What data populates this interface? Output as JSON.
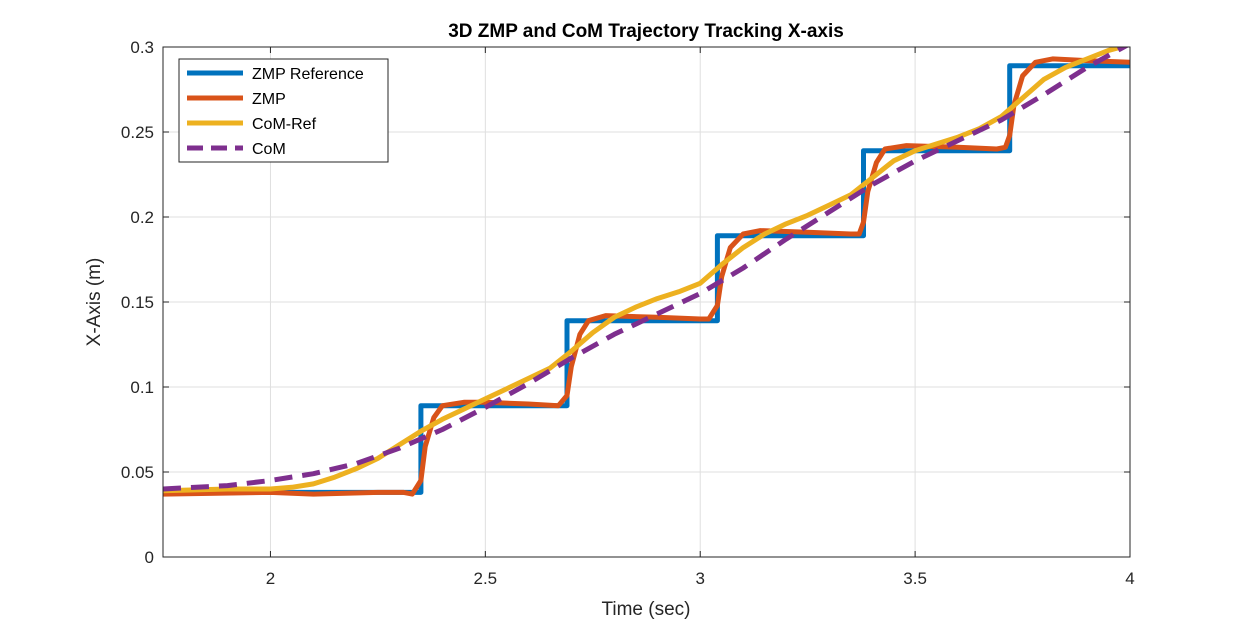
{
  "chart_data": {
    "type": "line",
    "title": "3D ZMP and CoM Trajectory Tracking X-axis",
    "xlabel": "Time (sec)",
    "ylabel": "X-Axis (m)",
    "xlim": [
      1.75,
      4.0
    ],
    "ylim": [
      0,
      0.3
    ],
    "xticks": [
      2,
      2.5,
      3,
      3.5,
      4
    ],
    "yticks": [
      0,
      0.05,
      0.1,
      0.15,
      0.2,
      0.25,
      0.3
    ],
    "grid": true,
    "legend_position": "top-left",
    "series": [
      {
        "name": "ZMP Reference",
        "color": "#0072BD",
        "style": "solid",
        "points": [
          [
            1.75,
            0.038
          ],
          [
            2.35,
            0.038
          ],
          [
            2.35,
            0.089
          ],
          [
            2.69,
            0.089
          ],
          [
            2.69,
            0.139
          ],
          [
            3.04,
            0.139
          ],
          [
            3.04,
            0.189
          ],
          [
            3.38,
            0.189
          ],
          [
            3.38,
            0.239
          ],
          [
            3.72,
            0.239
          ],
          [
            3.72,
            0.289
          ],
          [
            4.0,
            0.289
          ]
        ]
      },
      {
        "name": "ZMP",
        "color": "#D95319",
        "style": "solid",
        "points": [
          [
            1.75,
            0.037
          ],
          [
            2.0,
            0.038
          ],
          [
            2.1,
            0.037
          ],
          [
            2.25,
            0.038
          ],
          [
            2.31,
            0.038
          ],
          [
            2.33,
            0.037
          ],
          [
            2.35,
            0.045
          ],
          [
            2.36,
            0.065
          ],
          [
            2.38,
            0.082
          ],
          [
            2.4,
            0.089
          ],
          [
            2.45,
            0.091
          ],
          [
            2.5,
            0.091
          ],
          [
            2.6,
            0.09
          ],
          [
            2.67,
            0.089
          ],
          [
            2.69,
            0.095
          ],
          [
            2.7,
            0.112
          ],
          [
            2.72,
            0.131
          ],
          [
            2.74,
            0.139
          ],
          [
            2.78,
            0.142
          ],
          [
            2.9,
            0.141
          ],
          [
            3.0,
            0.14
          ],
          [
            3.02,
            0.14
          ],
          [
            3.04,
            0.148
          ],
          [
            3.05,
            0.165
          ],
          [
            3.07,
            0.182
          ],
          [
            3.1,
            0.19
          ],
          [
            3.14,
            0.192
          ],
          [
            3.25,
            0.191
          ],
          [
            3.35,
            0.19
          ],
          [
            3.37,
            0.19
          ],
          [
            3.38,
            0.197
          ],
          [
            3.39,
            0.215
          ],
          [
            3.41,
            0.232
          ],
          [
            3.43,
            0.24
          ],
          [
            3.48,
            0.242
          ],
          [
            3.6,
            0.241
          ],
          [
            3.69,
            0.24
          ],
          [
            3.71,
            0.241
          ],
          [
            3.72,
            0.248
          ],
          [
            3.73,
            0.266
          ],
          [
            3.75,
            0.283
          ],
          [
            3.78,
            0.291
          ],
          [
            3.82,
            0.293
          ],
          [
            3.9,
            0.292
          ],
          [
            4.0,
            0.291
          ]
        ]
      },
      {
        "name": "CoM-Ref",
        "color": "#EDB120",
        "style": "solid",
        "points": [
          [
            1.75,
            0.039
          ],
          [
            1.9,
            0.04
          ],
          [
            2.0,
            0.04
          ],
          [
            2.05,
            0.041
          ],
          [
            2.1,
            0.043
          ],
          [
            2.15,
            0.047
          ],
          [
            2.2,
            0.052
          ],
          [
            2.25,
            0.058
          ],
          [
            2.3,
            0.066
          ],
          [
            2.35,
            0.074
          ],
          [
            2.4,
            0.081
          ],
          [
            2.45,
            0.087
          ],
          [
            2.5,
            0.093
          ],
          [
            2.55,
            0.099
          ],
          [
            2.6,
            0.105
          ],
          [
            2.65,
            0.111
          ],
          [
            2.7,
            0.121
          ],
          [
            2.75,
            0.132
          ],
          [
            2.8,
            0.141
          ],
          [
            2.85,
            0.147
          ],
          [
            2.9,
            0.152
          ],
          [
            2.95,
            0.156
          ],
          [
            3.0,
            0.161
          ],
          [
            3.05,
            0.172
          ],
          [
            3.1,
            0.182
          ],
          [
            3.15,
            0.19
          ],
          [
            3.2,
            0.196
          ],
          [
            3.25,
            0.201
          ],
          [
            3.3,
            0.207
          ],
          [
            3.35,
            0.213
          ],
          [
            3.4,
            0.223
          ],
          [
            3.45,
            0.233
          ],
          [
            3.5,
            0.239
          ],
          [
            3.55,
            0.243
          ],
          [
            3.6,
            0.247
          ],
          [
            3.65,
            0.252
          ],
          [
            3.7,
            0.259
          ],
          [
            3.75,
            0.27
          ],
          [
            3.8,
            0.281
          ],
          [
            3.85,
            0.288
          ],
          [
            3.9,
            0.293
          ],
          [
            3.95,
            0.298
          ],
          [
            3.98,
            0.3
          ]
        ]
      },
      {
        "name": "CoM",
        "color": "#7E2F8E",
        "style": "dashed",
        "points": [
          [
            1.75,
            0.04
          ],
          [
            1.9,
            0.042
          ],
          [
            2.0,
            0.045
          ],
          [
            2.1,
            0.049
          ],
          [
            2.2,
            0.055
          ],
          [
            2.3,
            0.064
          ],
          [
            2.4,
            0.075
          ],
          [
            2.5,
            0.088
          ],
          [
            2.6,
            0.102
          ],
          [
            2.7,
            0.117
          ],
          [
            2.8,
            0.131
          ],
          [
            2.9,
            0.143
          ],
          [
            3.0,
            0.155
          ],
          [
            3.1,
            0.17
          ],
          [
            3.2,
            0.187
          ],
          [
            3.3,
            0.203
          ],
          [
            3.4,
            0.219
          ],
          [
            3.5,
            0.233
          ],
          [
            3.6,
            0.245
          ],
          [
            3.7,
            0.257
          ],
          [
            3.8,
            0.272
          ],
          [
            3.9,
            0.288
          ],
          [
            4.0,
            0.302
          ]
        ]
      }
    ]
  }
}
